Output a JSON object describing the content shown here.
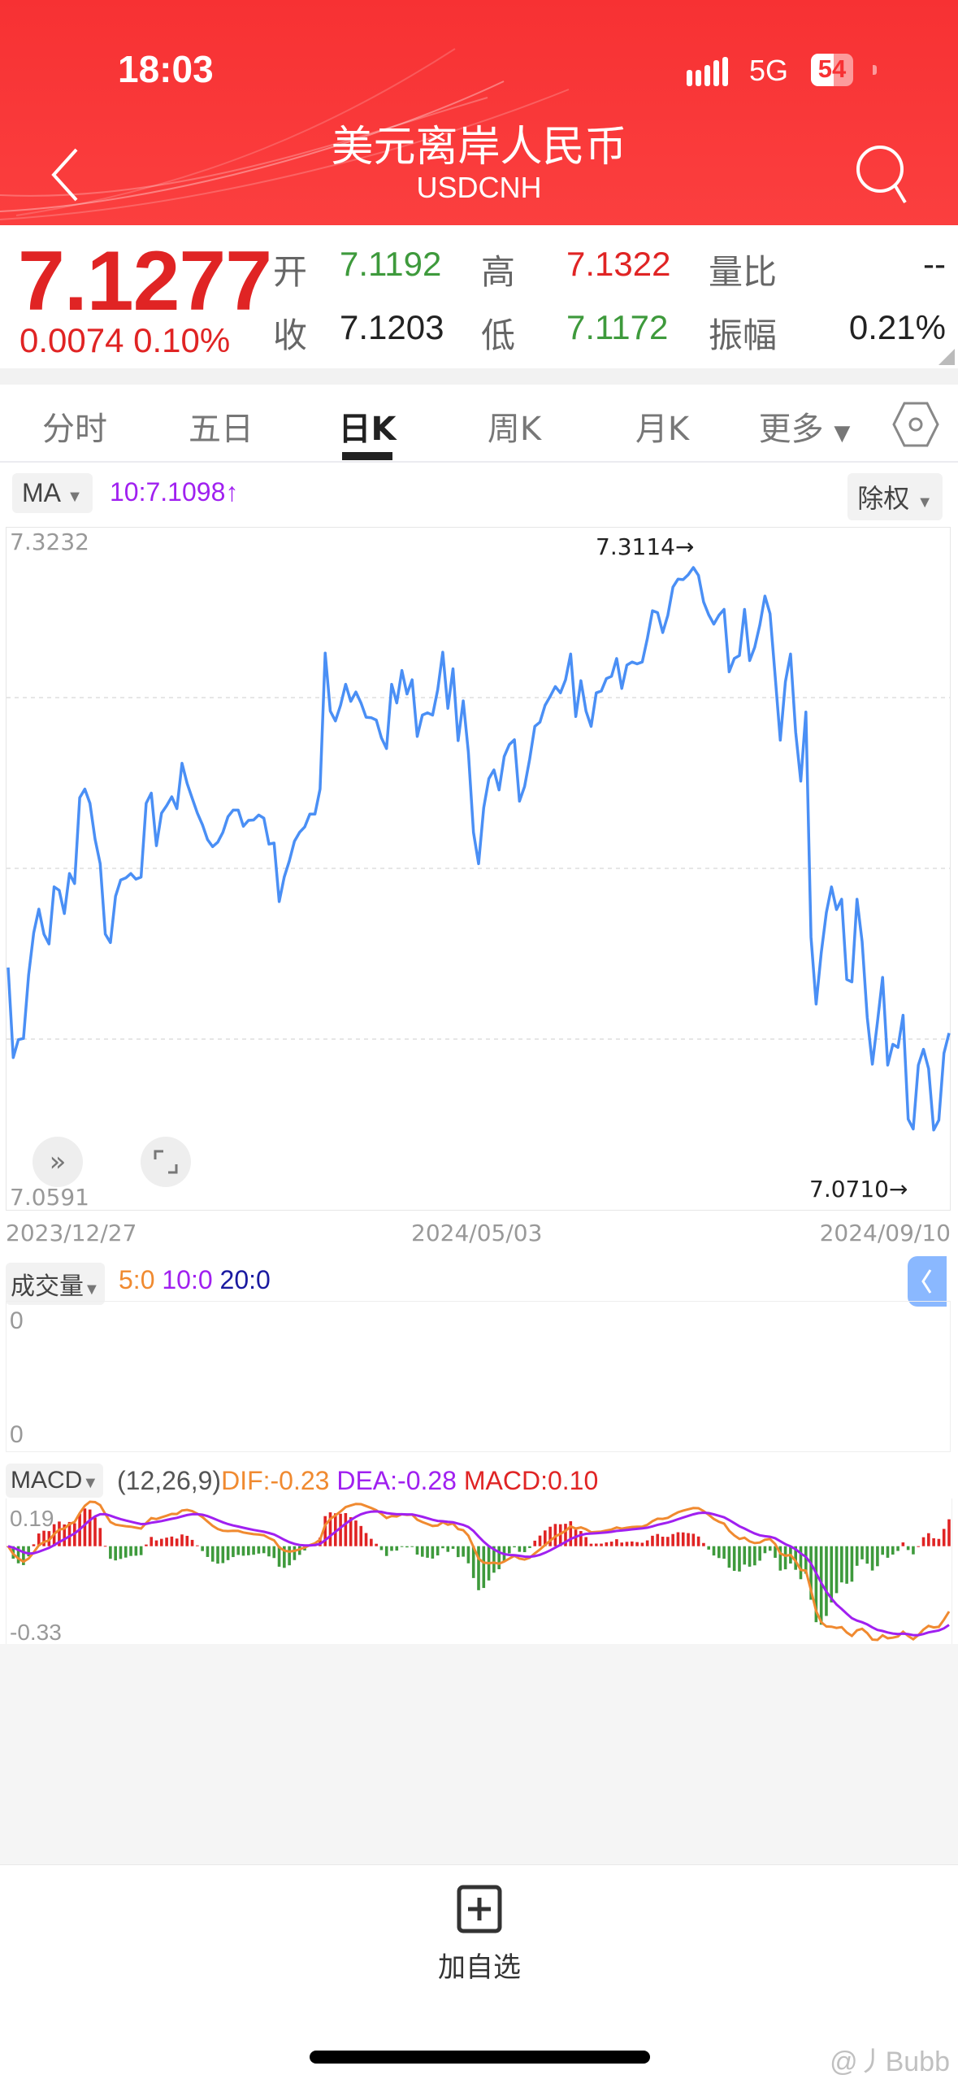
{
  "status_bar": {
    "time": "18:03",
    "network": "5G",
    "battery": "54",
    "battery_level": 54
  },
  "header": {
    "title": "美元离岸人民币",
    "subtitle": "USDCNH",
    "back_icon": "chevron-left-icon",
    "search_icon": "search-icon"
  },
  "quote": {
    "price": "7.1277",
    "change": "0.0074",
    "change_pct": "0.10%",
    "open_label": "开",
    "open": "7.1192",
    "high_label": "高",
    "high": "7.1322",
    "volume_ratio_label": "量比",
    "volume_ratio": "--",
    "close_label": "收",
    "close": "7.1203",
    "low_label": "低",
    "low": "7.1172",
    "amplitude_label": "振幅",
    "amplitude": "0.21%",
    "colors": {
      "up": "#e02424",
      "down": "#3e9a3c"
    }
  },
  "tabs": [
    {
      "label": "分时",
      "active": false
    },
    {
      "label": "五日",
      "active": false
    },
    {
      "label": "日K",
      "active": true
    },
    {
      "label": "周K",
      "active": false
    },
    {
      "label": "月K",
      "active": false
    },
    {
      "label": "更多",
      "active": false
    }
  ],
  "tabs_more_arrow": "▼",
  "indicator_bar": {
    "ma_button": "MA",
    "ma_value": "10:7.1098",
    "ma_arrow": "↑",
    "ma_color": "#a020f0",
    "adjust_button": "除权",
    "dropdown": "▼"
  },
  "chart_data": {
    "type": "line",
    "ylim": [
      7.0591,
      7.3232
    ],
    "y_top_label": "7.3232",
    "y_bottom_label": "7.0591",
    "x_tick_labels": [
      "2023/12/27",
      "2024/05/03",
      "2024/09/10"
    ],
    "max_marker": "7.3114→",
    "min_marker": "7.0710→",
    "grid": true,
    "line_color": "#4a8ff5",
    "values": [
      7.1404,
      7.1019,
      7.1096,
      7.1101,
      7.1372,
      7.1553,
      7.1654,
      7.1547,
      7.1505,
      7.1749,
      7.1734,
      7.1635,
      7.1806,
      7.1763,
      7.213,
      7.2167,
      7.2106,
      7.1953,
      7.1848,
      7.1547,
      7.1511,
      7.1709,
      7.1778,
      7.1787,
      7.1806,
      7.1782,
      7.1791,
      7.2106,
      7.215,
      7.1925,
      7.2064,
      7.2096,
      7.2134,
      7.2083,
      7.2277,
      7.2191,
      7.2127,
      7.2064,
      7.2014,
      7.1951,
      7.1921,
      7.194,
      7.1982,
      7.2049,
      7.2077,
      7.2077,
      7.2008,
      7.2033,
      7.2035,
      7.2056,
      7.2043,
      7.1932,
      7.1936,
      7.1686,
      7.1791,
      7.186,
      7.1944,
      7.1982,
      7.2005,
      7.206,
      7.206,
      7.2167,
      7.2748,
      7.25,
      7.2458,
      7.2525,
      7.2615,
      7.2542,
      7.2582,
      7.2535,
      7.2474,
      7.2472,
      7.2462,
      7.2386,
      7.234,
      7.2615,
      7.2535,
      7.2674,
      7.2573,
      7.2634,
      7.2392,
      7.2483,
      7.2493,
      7.2483,
      7.2592,
      7.2752,
      7.2512,
      7.2681,
      7.2374,
      7.2544,
      7.2325,
      7.1982,
      7.1848,
      7.2087,
      7.2211,
      7.2249,
      7.2163,
      7.2306,
      7.2357,
      7.2378,
      7.2115,
      7.2178,
      7.2296,
      7.2435,
      7.2453,
      7.2525,
      7.2563,
      7.2605,
      7.2578,
      7.2634,
      7.2744,
      7.2477,
      7.263,
      7.25,
      7.2435,
      7.2578,
      7.2586,
      7.2639,
      7.2649,
      7.2725,
      7.2597,
      7.2697,
      7.271,
      7.2702,
      7.271,
      7.2811,
      7.2929,
      7.2921,
      7.2836,
      7.291,
      7.303,
      7.3064,
      7.3062,
      7.3083,
      7.3114,
      7.308,
      7.2967,
      7.2912,
      7.2872,
      7.291,
      7.2935,
      7.2668,
      7.2725,
      7.2738,
      7.2935,
      7.2716,
      7.2773,
      7.2868,
      7.2992,
      7.2916,
      7.2649,
      7.2376,
      7.2626,
      7.2744,
      7.2411,
      7.2201,
      7.2496,
      7.1534,
      7.1248,
      7.1467,
      7.1639,
      7.1749,
      7.1652,
      7.1696,
      7.1353,
      7.1343,
      7.1696,
      7.1515,
      7.1191,
      7.0991,
      7.1172,
      7.1362,
      7.0987,
      7.1076,
      7.1063,
      7.12,
      7.0756,
      7.0714,
      7.0987,
      7.1055,
      7.0972,
      7.071,
      7.0752,
      7.1038,
      7.1124
    ]
  },
  "chart_controls": {
    "expand_icon": "double-chevron-right-icon",
    "fullscreen_icon": "fullscreen-icon"
  },
  "volume": {
    "button": "成交量",
    "ma5": "5:0",
    "ma10": "10:0",
    "ma20": "20:0",
    "top_label": "0",
    "bottom_label": "0",
    "colors": {
      "ma5": "#f08a30",
      "ma10": "#a020f0",
      "ma20": "#1a1aa0"
    }
  },
  "macd": {
    "button": "MACD",
    "params": "(12,26,9)",
    "dif": "DIF:-0.23",
    "dea": "DEA:-0.28",
    "macd": "MACD:0.10",
    "top_label": "0.19",
    "bottom_label": "-0.33",
    "colors": {
      "dif": "#f08a30",
      "dea": "#a020f0",
      "up_bar": "#e02424",
      "down_bar": "#3e9a3c"
    }
  },
  "bottom_bar": {
    "add_watchlist": "加自选",
    "icon": "plus-square-icon"
  },
  "watermark": "@丿Bubb"
}
